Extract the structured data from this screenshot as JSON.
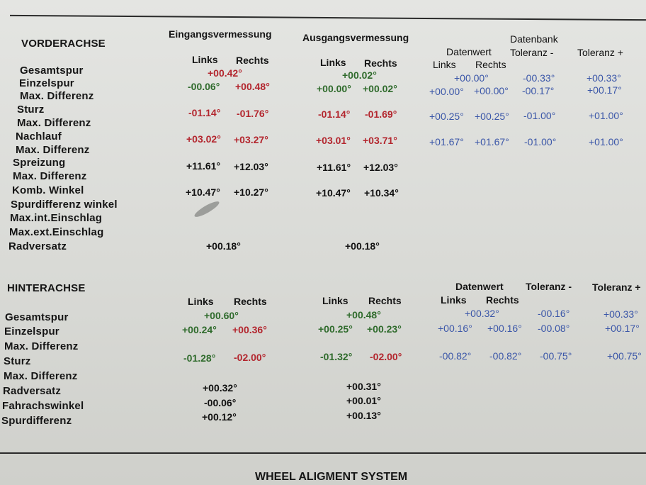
{
  "front": {
    "title": "VORDERACHSE",
    "heading_input": "Eingangsvermessung",
    "heading_output": "Ausgangsvermessung",
    "heading_db": "Datenbank",
    "col_links": "Links",
    "col_rechts": "Rechts",
    "col_datenwert": "Datenwert",
    "col_tol_minus": "Toleranz -",
    "col_tol_plus": "Toleranz +",
    "labels": {
      "gesamtspur": "Gesamtspur",
      "einzelspur": "Einzelspur",
      "maxdiff1": "Max. Differenz",
      "sturz": "Sturz",
      "maxdiff2": "Max. Differenz",
      "nachlauf": "Nachlauf",
      "maxdiff3": "Max. Differenz",
      "spreizung": "Spreizung",
      "maxdiff4": "Max. Differenz",
      "komb": "Komb. Winkel",
      "spurdiff": "Spurdifferenz winkel",
      "maxint": "Max.int.Einschlag",
      "maxext": "Max.ext.Einschlag",
      "radversatz": "Radversatz"
    },
    "values": {
      "gesamtspur_in": "+00.42°",
      "gesamtspur_out": "+00.02°",
      "einzelspur_in_l": "-00.06°",
      "einzelspur_in_r": "+00.48°",
      "einzelspur_out_l": "+00.00°",
      "einzelspur_out_r": "+00.02°",
      "sturz_in_l": "-01.14°",
      "sturz_in_r": "-01.76°",
      "sturz_out_l": "-01.14°",
      "sturz_out_r": "-01.69°",
      "nachlauf_in_l": "+03.02°",
      "nachlauf_in_r": "+03.27°",
      "nachlauf_out_l": "+03.01°",
      "nachlauf_out_r": "+03.71°",
      "spreizung_in_l": "+11.61°",
      "spreizung_in_r": "+12.03°",
      "spreizung_out_l": "+11.61°",
      "spreizung_out_r": "+12.03°",
      "komb_in_l": "+10.47°",
      "komb_in_r": "+10.27°",
      "komb_out_l": "+10.47°",
      "komb_out_r": "+10.34°",
      "radversatz_in": "+00.18°",
      "radversatz_out": "+00.18°"
    },
    "db": {
      "gesamtspur_wert": "+00.00°",
      "gesamtspur_tmin": "-00.33°",
      "gesamtspur_tplus": "+00.33°",
      "einzelspur_l": "+00.00°",
      "einzelspur_r": "+00.00°",
      "einzelspur_tmin": "-00.17°",
      "einzelspur_tplus": "+00.17°",
      "sturz_l": "+00.25°",
      "sturz_r": "+00.25°",
      "sturz_tmin": "-01.00°",
      "sturz_tplus": "+01.00°",
      "nachlauf_l": "+01.67°",
      "nachlauf_r": "+01.67°",
      "nachlauf_tmin": "-01.00°",
      "nachlauf_tplus": "+01.00°"
    }
  },
  "rear": {
    "title": "HINTERACHSE",
    "col_links": "Links",
    "col_rechts": "Rechts",
    "col_datenwert": "Datenwert",
    "col_tol_minus": "Toleranz -",
    "col_tol_plus": "Toleranz +",
    "labels": {
      "gesamtspur": "Gesamtspur",
      "einzelspur": "Einzelspur",
      "maxdiff1": "Max. Differenz",
      "sturz": "Sturz",
      "maxdiff2": "Max. Differenz",
      "radversatz": "Radversatz",
      "fahrachs": "Fahrachswinkel",
      "spurdiff": "Spurdifferenz"
    },
    "values": {
      "gesamtspur_in": "+00.60°",
      "gesamtspur_out": "+00.48°",
      "einzelspur_in_l": "+00.24°",
      "einzelspur_in_r": "+00.36°",
      "einzelspur_out_l": "+00.25°",
      "einzelspur_out_r": "+00.23°",
      "sturz_in_l": "-01.28°",
      "sturz_in_r": "-02.00°",
      "sturz_out_l": "-01.32°",
      "sturz_out_r": "-02.00°",
      "radversatz_in": "+00.32°",
      "radversatz_out": "+00.31°",
      "fahrachs_in": "-00.06°",
      "fahrachs_out": "+00.01°",
      "spurdiff_in": "+00.12°",
      "spurdiff_out": "+00.13°"
    },
    "db": {
      "gesamtspur_wert": "+00.32°",
      "gesamtspur_tmin": "-00.16°",
      "gesamtspur_tplus": "+00.33°",
      "einzelspur_l": "+00.16°",
      "einzelspur_r": "+00.16°",
      "einzelspur_tmin": "-00.08°",
      "einzelspur_tplus": "+00.17°",
      "sturz_l": "-00.82°",
      "sturz_r": "-00.82°",
      "sturz_tmin": "-00.75°",
      "sturz_tplus": "+00.75°"
    }
  },
  "footer": {
    "system": "WHEEL ALIGMENT SYSTEM"
  },
  "colors": {
    "red": "#b3262e",
    "green": "#2f6b2c",
    "blue": "#3a56a8"
  }
}
